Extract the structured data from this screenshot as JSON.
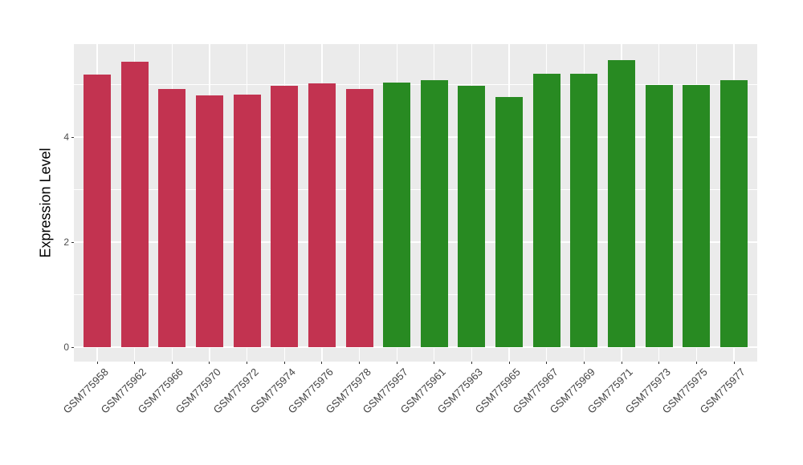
{
  "chart_data": {
    "type": "bar",
    "title": "",
    "xlabel": "",
    "ylabel": "Expression Level",
    "ylim": [
      0,
      5.77
    ],
    "y_ticks": [
      0,
      2,
      4
    ],
    "y_minor_ticks": [
      1,
      3,
      5
    ],
    "grid": "on",
    "legend": "none",
    "panel_bg": "#EBEBEB",
    "grid_color": "#FFFFFF",
    "bar_groups": [
      {
        "name": "red-group",
        "color": "#C23350",
        "labels": [
          "GSM775958",
          "GSM775962",
          "GSM775966",
          "GSM775970",
          "GSM775972",
          "GSM775974",
          "GSM775976",
          "GSM775978"
        ],
        "values": [
          5.19,
          5.43,
          4.92,
          4.8,
          4.81,
          4.98,
          5.03,
          4.91
        ]
      },
      {
        "name": "green-group",
        "color": "#288A22",
        "labels": [
          "GSM775957",
          "GSM775961",
          "GSM775963",
          "GSM775965",
          "GSM775967",
          "GSM775969",
          "GSM775971",
          "GSM775973",
          "GSM775975",
          "GSM775977"
        ],
        "values": [
          5.04,
          5.09,
          4.98,
          4.76,
          5.21,
          5.21,
          5.47,
          4.99,
          5.0,
          5.08
        ]
      }
    ]
  }
}
